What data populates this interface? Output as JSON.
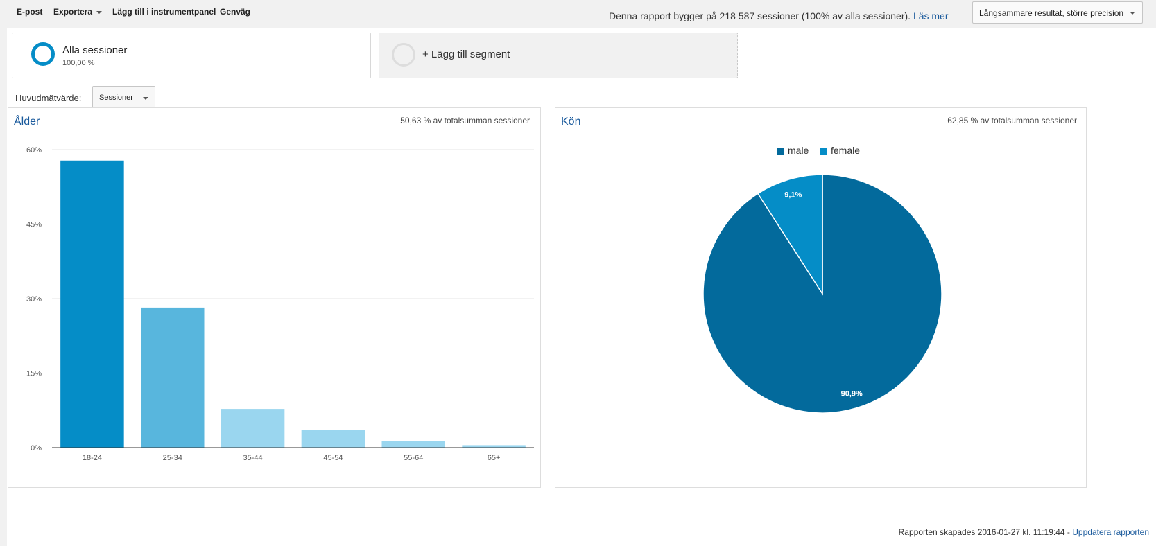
{
  "toolbar": {
    "email": "E-post",
    "export": "Exportera",
    "add_dashboard": "Lägg till i instrumentpanel",
    "shortcut": "Genväg",
    "report_note": "Denna rapport bygger på 218 587 sessioner (100% av alla sessioner).",
    "read_more": "Läs mer",
    "precision": "Långsammare resultat, större precision"
  },
  "segments": {
    "all_title": "Alla sessioner",
    "all_value": "100,00 %",
    "add_label": "+ Lägg till segment"
  },
  "metric": {
    "label": "Huvudmätvärde:",
    "selected": "Sessioner"
  },
  "age_panel": {
    "title": "Ålder",
    "share": "50,63 % av totalsumman sessioner"
  },
  "gender_panel": {
    "title": "Kön",
    "share": "62,85 % av totalsumman sessioner"
  },
  "footer": {
    "created": "Rapporten skapades 2016-01-27 kl. 11:19:44 -",
    "update": "Uppdatera rapporten"
  },
  "chart_data": [
    {
      "type": "bar",
      "categories": [
        "18-24",
        "25-34",
        "35-44",
        "45-54",
        "55-64",
        "65+"
      ],
      "values": [
        57.8,
        28.2,
        7.8,
        3.6,
        1.3,
        0.5
      ],
      "colors": [
        "#058dc7",
        "#58b6dd",
        "#9ad6ef",
        "#9ad6ef",
        "#9ad6ef",
        "#9ad6ef"
      ],
      "ylim": [
        0,
        60
      ],
      "yticks": [
        "0%",
        "15%",
        "30%",
        "45%",
        "60%"
      ],
      "ytick_values": [
        0,
        15,
        30,
        45,
        60
      ],
      "grid": true
    },
    {
      "type": "pie",
      "slices": [
        {
          "name": "male",
          "value": 90.9,
          "label": "90,9%",
          "color": "#036a9c"
        },
        {
          "name": "female",
          "value": 9.1,
          "label": "9,1%",
          "color": "#058dc7"
        }
      ],
      "legend_position": "top"
    }
  ]
}
